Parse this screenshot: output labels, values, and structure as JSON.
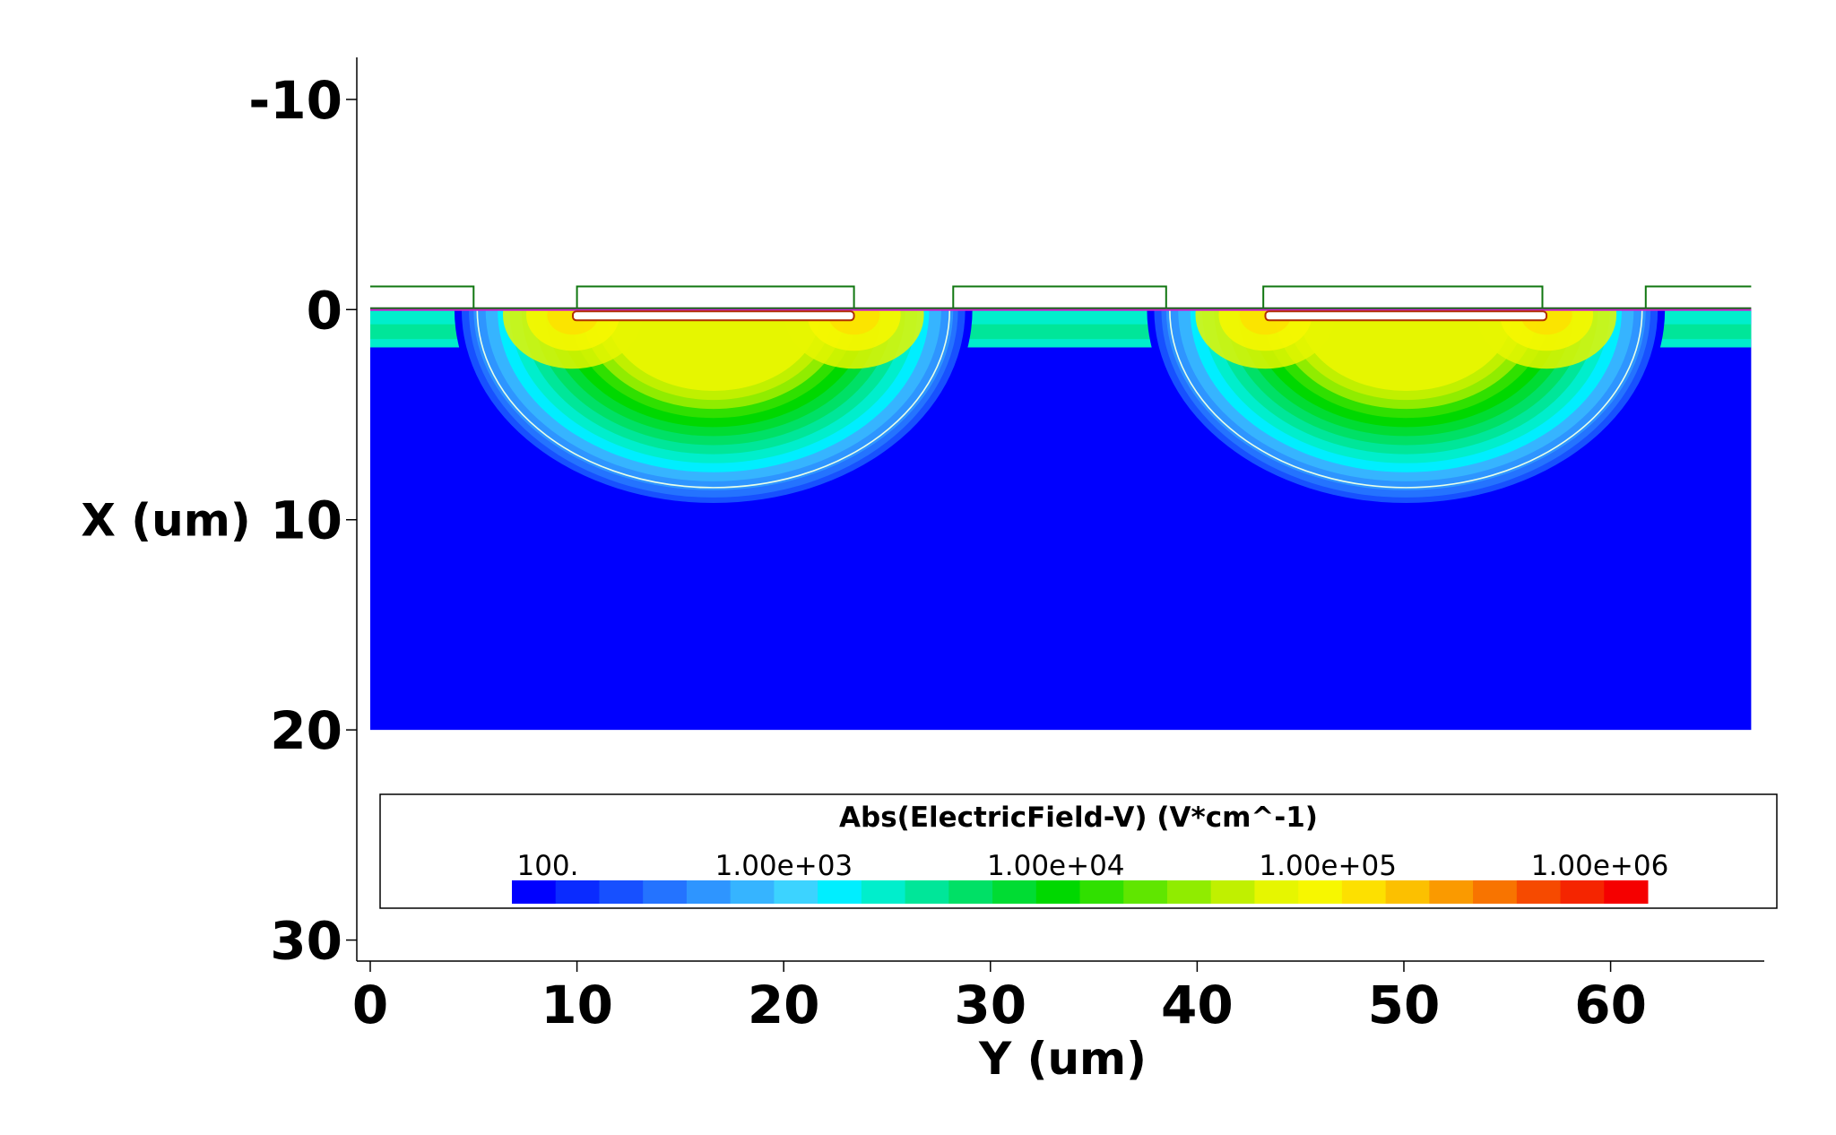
{
  "chart_data": {
    "type": "heatmap",
    "title": "",
    "xlabel": "Y (um)",
    "ylabel": "X (um)",
    "xlim": [
      0,
      67
    ],
    "ylim": [
      -12,
      31
    ],
    "x_ticks": [
      {
        "value": 0,
        "label": "0"
      },
      {
        "value": 10,
        "label": "10"
      },
      {
        "value": 20,
        "label": "20"
      },
      {
        "value": 30,
        "label": "30"
      },
      {
        "value": 40,
        "label": "40"
      },
      {
        "value": 50,
        "label": "50"
      },
      {
        "value": 60,
        "label": "60"
      }
    ],
    "y_ticks": [
      {
        "value": -10,
        "label": "-10"
      },
      {
        "value": 0,
        "label": "0"
      },
      {
        "value": 10,
        "label": "10"
      },
      {
        "value": 20,
        "label": "20"
      },
      {
        "value": 30,
        "label": "30"
      }
    ],
    "device_region": {
      "y_range": [
        0,
        66.8
      ],
      "x_range": [
        0,
        20
      ]
    },
    "substrate_field_level": 100,
    "depletion_regions": [
      {
        "name": "junction-1",
        "y_start": 5,
        "y_end": 28.2,
        "depth": 8.6,
        "peak_field": 150000,
        "core_field": 60000
      },
      {
        "name": "junction-2",
        "y_start": 38.5,
        "y_end": 61.7,
        "depth": 8.6,
        "peak_field": 150000,
        "core_field": 60000
      }
    ],
    "surface_oxide_segments": [
      {
        "name": "oxide-1",
        "y_start": 0,
        "y_end": 5
      },
      {
        "name": "oxide-2",
        "y_start": 10,
        "y_end": 23.4
      },
      {
        "name": "oxide-3",
        "y_start": 28.2,
        "y_end": 38.5
      },
      {
        "name": "oxide-4",
        "y_start": 43.2,
        "y_end": 56.7
      },
      {
        "name": "oxide-5",
        "y_start": 61.7,
        "y_end": 66.8
      }
    ],
    "colorbar": {
      "title": "Abs(ElectricField-V) (V*cm^-1)",
      "scale": "log",
      "min": 100,
      "max": 1500000,
      "tick_labels": [
        {
          "value": 100,
          "label": "100."
        },
        {
          "value": 1000,
          "label": "1.00e+03"
        },
        {
          "value": 10000,
          "label": "1.00e+04"
        },
        {
          "value": 100000,
          "label": "1.00e+05"
        },
        {
          "value": 1000000,
          "label": "1.00e+06"
        }
      ],
      "colors": [
        "#0000ff",
        "#0a2bff",
        "#1750ff",
        "#2473ff",
        "#2e95ff",
        "#36b4ff",
        "#3cd3ff",
        "#00eeff",
        "#00eecc",
        "#00e699",
        "#00e066",
        "#00dc33",
        "#00d800",
        "#30e000",
        "#60e600",
        "#90ec00",
        "#c0f000",
        "#e6f600",
        "#f7f700",
        "#fde000",
        "#fcc000",
        "#fa9a00",
        "#f87400",
        "#f64a00",
        "#f52500",
        "#f50000"
      ]
    }
  }
}
